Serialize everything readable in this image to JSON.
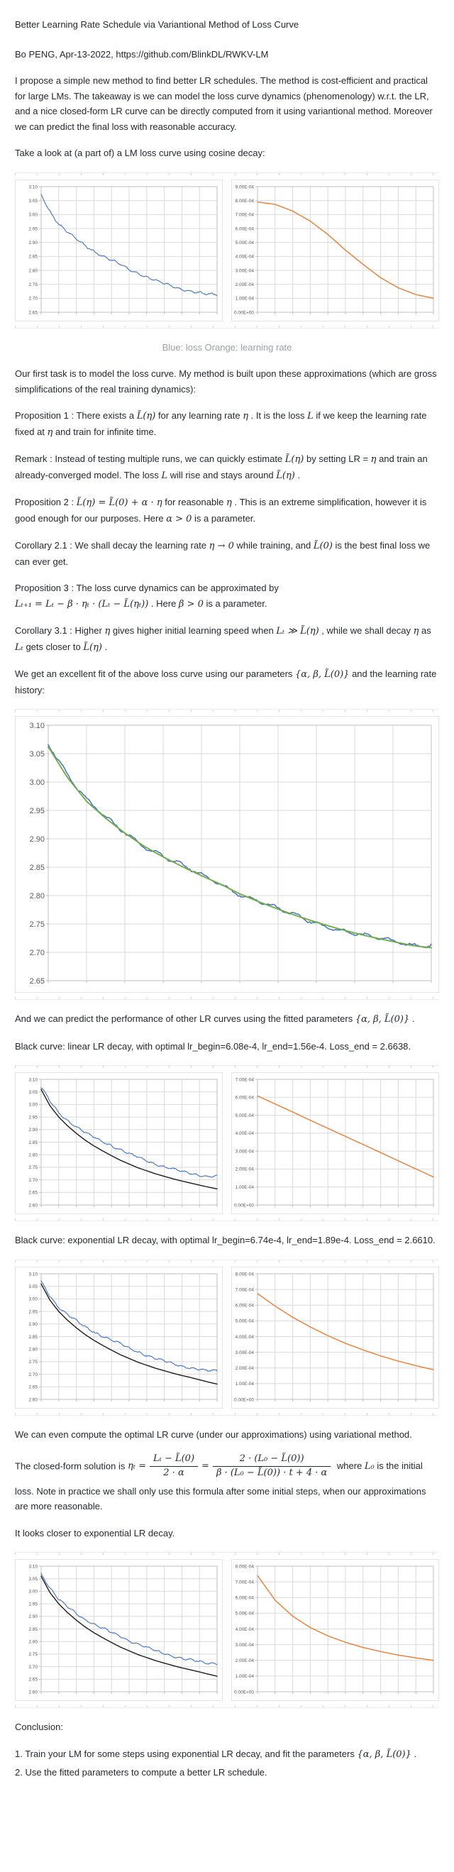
{
  "doc": {
    "title": "Better Learning Rate Schedule via Variantional Method of Loss Curve",
    "byline": "Bo PENG, Apr-13-2022, https://github.com/BlinkDL/RWKV-LM",
    "intro": [
      {
        "t": "I propose a simple new method to find better LR schedules. The method is cost-efficient and practical for large LMs. The takeaway is we can model the loss curve dynamics (phenomenology) w.r.t. the LR, and a nice closed-form LR curve can be directly computed from it using variantional method. Moreover we can predict the final loss with reasonable accuracy."
      }
    ],
    "take_a_look": [
      {
        "t": "Take a look at (a part of) a LM loss curve using cosine decay:"
      }
    ],
    "caption": "Blue: loss Orange: learning rate",
    "first_task": [
      {
        "t": "Our first task is to model the loss curve. My method is built upon these approximations (which are gross simplifications of the real training dynamics):"
      }
    ],
    "prop1": [
      {
        "t": "Proposition 1 : There exists a "
      },
      {
        "m": 1,
        "t": "L̃(η)"
      },
      {
        "t": " for any learning rate "
      },
      {
        "m": 1,
        "t": "η"
      },
      {
        "t": " . It is the loss "
      },
      {
        "m": 1,
        "t": "L"
      },
      {
        "t": " if we keep the learning rate fixed at "
      },
      {
        "m": 1,
        "t": "η"
      },
      {
        "t": " and train for infinite time."
      }
    ],
    "remark": [
      {
        "t": "Remark : Instead of testing multiple runs, we can quickly estimate "
      },
      {
        "m": 1,
        "t": "L̃(η)"
      },
      {
        "t": " by setting LR = "
      },
      {
        "m": 1,
        "t": "η"
      },
      {
        "t": " and train an already-converged model. The loss "
      },
      {
        "m": 1,
        "t": "L"
      },
      {
        "t": " will rise and stays around "
      },
      {
        "m": 1,
        "t": "L̃(η)"
      },
      {
        "t": " ."
      }
    ],
    "prop2": [
      {
        "t": "Proposition 2 : "
      },
      {
        "m": 1,
        "t": "L̃(η) = L̃(0) + α · η"
      },
      {
        "t": " for reasonable "
      },
      {
        "m": 1,
        "t": "η"
      },
      {
        "t": " . This is an extreme simplification, however it is good enough for our purposes. Here "
      },
      {
        "m": 1,
        "t": "α > 0"
      },
      {
        "t": " is a parameter."
      }
    ],
    "cor21": [
      {
        "t": "Corollary 2.1 : We shall decay the learning rate "
      },
      {
        "m": 1,
        "t": "η → 0"
      },
      {
        "t": " while training, and "
      },
      {
        "m": 1,
        "t": "L̃(0)"
      },
      {
        "t": " is the best final loss we can ever get."
      }
    ],
    "prop3_line1": [
      {
        "t": "Proposition 3 : The loss curve dynamics can be approximated by"
      }
    ],
    "prop3_line2": [
      {
        "m": 1,
        "t": "Lₜ₊₁ = Lₜ − β · ηₜ · (Lₜ − L̃(ηₜ))"
      },
      {
        "t": " . Here "
      },
      {
        "m": 1,
        "t": "β > 0"
      },
      {
        "t": " is a parameter."
      }
    ],
    "cor31": [
      {
        "t": "Corollary 3.1 : Higher "
      },
      {
        "m": 1,
        "t": "η"
      },
      {
        "t": " gives higher initial learning speed when "
      },
      {
        "m": 1,
        "t": "Lₜ ≫ L̃(η)"
      },
      {
        "t": " , while we shall decay "
      },
      {
        "m": 1,
        "t": "η"
      },
      {
        "t": " as "
      },
      {
        "m": 1,
        "t": "Lₜ"
      },
      {
        "t": " gets closer to "
      },
      {
        "m": 1,
        "t": "L̃(η)"
      },
      {
        "t": " ."
      }
    ],
    "excellent_fit": [
      {
        "t": "We get an excellent fit of the above loss curve using our parameters "
      },
      {
        "m": 1,
        "t": "{α, β, L̃(0)}"
      },
      {
        "t": " and the learning rate history:"
      }
    ],
    "predict": [
      {
        "t": "And we can predict the performance of other LR curves using the fitted parameters "
      },
      {
        "m": 1,
        "t": "{α, β, L̃(0)}"
      },
      {
        "t": " ."
      }
    ],
    "black_linear": [
      {
        "t": "Black curve: linear LR decay, with optimal lr_begin=6.08e-4, lr_end=1.56e-4. Loss_end = 2.6638."
      }
    ],
    "black_exp": [
      {
        "t": "Black curve: exponential LR decay, with optimal lr_begin=6.74e-4, lr_end=1.89e-4. Loss_end = 2.6610."
      }
    ],
    "variational": [
      {
        "t": "We can even compute the optimal LR curve (under our approximations) using variational method."
      }
    ],
    "closed_form": {
      "intro": [
        {
          "t": "The closed-form solution is "
        }
      ],
      "lhs": "ηₜ =",
      "frac1_num": "Lₜ − L̃(0)",
      "frac1_den": "2 · α",
      "equals": "=",
      "frac2_num": "2 · (L₀ − L̃(0))",
      "frac2_den": "β · (L₀ − L̃(0)) · t + 4 · α",
      "outro": [
        {
          "t": " where "
        },
        {
          "m": 1,
          "t": "L₀"
        },
        {
          "t": " is the initial"
        }
      ],
      "continuation": "loss. Note in practice we shall only use this formula after some initial steps, when our approximations are more reasonable."
    },
    "closer_exp": [
      {
        "t": "It looks closer to exponential LR decay."
      }
    ],
    "conclusion_heading": "Conclusion:",
    "conclusion_items": [
      [
        {
          "t": "1. Train your LM for some steps using exponential LR decay, and fit the parameters "
        },
        {
          "m": 1,
          "t": "{α, β, L̃(0)}"
        },
        {
          "t": " ."
        }
      ],
      [
        {
          "t": "2. Use the fitted parameters to compute a better LR schedule."
        }
      ]
    ]
  },
  "colors": {
    "text": "#24292f",
    "caption_gray": "#9aa0a6",
    "loss_blue": "#4472c4",
    "lr_orange": "#ed7d31",
    "fit_green": "#70ad47",
    "optimal_black": "#1c1c1c",
    "gridline": "#d9d9d9"
  },
  "chart_data": [
    {
      "name": "loss-curve-cosine-decay",
      "type": "line",
      "x_axis": "training steps (unlabeled)",
      "y_ticks": [
        "3.10",
        "3.05",
        "3.00",
        "2.95",
        "2.90",
        "2.85",
        "2.80",
        "2.75",
        "2.70",
        "2.65"
      ],
      "y_max": 3.1,
      "y_min": 2.65,
      "x_divisions": 10,
      "series": [
        {
          "name": "loss",
          "color": "#4472c4",
          "width": 1.1,
          "noise": 0.006,
          "seed": 3,
          "y": [
            3.07,
            3.012,
            2.967,
            2.937,
            2.912,
            2.888,
            2.869,
            2.852,
            2.836,
            2.821,
            2.803,
            2.79,
            2.776,
            2.763,
            2.752,
            2.742,
            2.733,
            2.726,
            2.719,
            2.713,
            2.714
          ]
        }
      ]
    },
    {
      "name": "learning-rate-cosine-decay",
      "type": "line",
      "x_axis": "training steps (unlabeled)",
      "y_ticks": [
        "9.00E-04",
        "8.00E-04",
        "7.00E-04",
        "6.00E-04",
        "5.00E-04",
        "4.00E-04",
        "3.00E-04",
        "2.00E-04",
        "1.00E-04",
        "0.00E+00"
      ],
      "y_max": 0.0009,
      "y_min": 0,
      "x_divisions": 10,
      "series": [
        {
          "name": "learning rate",
          "color": "#ed7d31",
          "width": 1.4,
          "noise": 0,
          "seed": 1,
          "y": [
            0.00079,
            0.000773,
            0.000725,
            0.000653,
            0.000557,
            0.000445,
            0.000343,
            0.000247,
            0.000175,
            0.000127,
            0.0001
          ]
        }
      ]
    },
    {
      "name": "loss-curve-with-fitted-model",
      "type": "line",
      "x_axis": "training steps (unlabeled)",
      "y_ticks": [
        "3.10",
        "3.05",
        "3.00",
        "2.95",
        "2.90",
        "2.85",
        "2.80",
        "2.75",
        "2.70",
        "2.65"
      ],
      "y_max": 3.1,
      "y_min": 2.65,
      "x_divisions": 10,
      "series": [
        {
          "name": "loss (actual)",
          "color": "#4472c4",
          "width": 1.5,
          "noise": 0.0055,
          "seed": 5,
          "y": [
            3.07,
            3.012,
            2.967,
            2.937,
            2.912,
            2.888,
            2.869,
            2.852,
            2.836,
            2.821,
            2.803,
            2.79,
            2.776,
            2.763,
            2.752,
            2.742,
            2.733,
            2.726,
            2.719,
            2.713,
            2.714
          ]
        },
        {
          "name": "fit",
          "color": "#70ad47",
          "width": 1.9,
          "noise": 0,
          "seed": 1,
          "y": [
            3.062,
            3.008,
            2.966,
            2.936,
            2.91,
            2.887,
            2.868,
            2.851,
            2.835,
            2.82,
            2.803,
            2.789,
            2.776,
            2.764,
            2.753,
            2.743,
            2.734,
            2.726,
            2.719,
            2.712,
            2.708
          ]
        }
      ]
    },
    {
      "name": "loss-predicted-linear-decay",
      "type": "line",
      "x_axis": "training steps (unlabeled)",
      "y_ticks": [
        "3.10",
        "3.05",
        "3.00",
        "2.95",
        "2.90",
        "2.85",
        "2.80",
        "2.75",
        "2.70",
        "2.65",
        "2.60"
      ],
      "y_max": 3.1,
      "y_min": 2.6,
      "x_divisions": 10,
      "series": [
        {
          "name": "loss (actual)",
          "color": "#4472c4",
          "width": 1.1,
          "noise": 0.006,
          "seed": 7,
          "y": [
            3.07,
            3.012,
            2.967,
            2.937,
            2.912,
            2.888,
            2.869,
            2.852,
            2.836,
            2.821,
            2.803,
            2.79,
            2.776,
            2.763,
            2.752,
            2.742,
            2.733,
            2.726,
            2.719,
            2.713,
            2.714
          ]
        },
        {
          "name": "predicted (linear LR decay)",
          "color": "#1c1c1c",
          "width": 1.4,
          "noise": 0,
          "seed": 1,
          "y": [
            3.06,
            2.995,
            2.95,
            2.915,
            2.885,
            2.858,
            2.835,
            2.815,
            2.796,
            2.778,
            2.763,
            2.748,
            2.736,
            2.724,
            2.714,
            2.704,
            2.695,
            2.687,
            2.679,
            2.671,
            2.664
          ]
        }
      ]
    },
    {
      "name": "learning-rate-linear-decay",
      "type": "line",
      "x_axis": "training steps (unlabeled)",
      "y_ticks": [
        "7.00E-04",
        "6.00E-04",
        "5.00E-04",
        "4.00E-04",
        "3.00E-04",
        "2.00E-04",
        "1.00E-04",
        "0.00E+00"
      ],
      "y_max": 0.0007,
      "y_min": 0,
      "x_divisions": 10,
      "series": [
        {
          "name": "learning rate",
          "color": "#ed7d31",
          "width": 1.4,
          "noise": 0,
          "seed": 1,
          "y": [
            0.000608,
            0.000563,
            0.000518,
            0.000472,
            0.000427,
            0.000382,
            0.000337,
            0.000292,
            0.000246,
            0.000201,
            0.000156
          ]
        }
      ]
    },
    {
      "name": "loss-predicted-exponential-decay",
      "type": "line",
      "x_axis": "training steps (unlabeled)",
      "y_ticks": [
        "3.10",
        "3.05",
        "3.00",
        "2.95",
        "2.90",
        "2.85",
        "2.80",
        "2.75",
        "2.70",
        "2.65",
        "2.60"
      ],
      "y_max": 3.1,
      "y_min": 2.6,
      "x_divisions": 10,
      "series": [
        {
          "name": "loss (actual)",
          "color": "#4472c4",
          "width": 1.1,
          "noise": 0.006,
          "seed": 9,
          "y": [
            3.07,
            3.012,
            2.967,
            2.937,
            2.912,
            2.888,
            2.869,
            2.852,
            2.836,
            2.821,
            2.803,
            2.79,
            2.776,
            2.763,
            2.752,
            2.742,
            2.733,
            2.726,
            2.719,
            2.713,
            2.714
          ]
        },
        {
          "name": "predicted (exponential LR decay)",
          "color": "#1c1c1c",
          "width": 1.4,
          "noise": 0,
          "seed": 1,
          "y": [
            3.06,
            2.995,
            2.95,
            2.915,
            2.885,
            2.858,
            2.835,
            2.815,
            2.796,
            2.778,
            2.763,
            2.748,
            2.736,
            2.724,
            2.714,
            2.704,
            2.695,
            2.687,
            2.678,
            2.669,
            2.661
          ]
        }
      ]
    },
    {
      "name": "learning-rate-exponential-decay",
      "type": "line",
      "x_axis": "training steps (unlabeled)",
      "y_ticks": [
        "8.00E-04",
        "7.00E-04",
        "6.00E-04",
        "5.00E-04",
        "4.00E-04",
        "3.00E-04",
        "2.00E-04",
        "1.00E-04",
        "0.00E+00"
      ],
      "y_max": 0.0008,
      "y_min": 0,
      "x_divisions": 10,
      "series": [
        {
          "name": "learning rate",
          "color": "#ed7d31",
          "width": 1.4,
          "noise": 0,
          "seed": 1,
          "y": [
            0.000674,
            0.000594,
            0.000523,
            0.000461,
            0.000406,
            0.000357,
            0.000315,
            0.000277,
            0.000244,
            0.000215,
            0.000189
          ]
        }
      ]
    },
    {
      "name": "loss-predicted-optimal-lr",
      "type": "line",
      "x_axis": "training steps (unlabeled)",
      "y_ticks": [
        "3.10",
        "3.05",
        "3.00",
        "2.95",
        "2.90",
        "2.85",
        "2.80",
        "2.75",
        "2.70",
        "2.65",
        "2.60"
      ],
      "y_max": 3.1,
      "y_min": 2.6,
      "x_divisions": 10,
      "series": [
        {
          "name": "loss (actual)",
          "color": "#4472c4",
          "width": 1.1,
          "noise": 0.006,
          "seed": 11,
          "y": [
            3.07,
            3.012,
            2.967,
            2.937,
            2.912,
            2.888,
            2.869,
            2.852,
            2.836,
            2.821,
            2.803,
            2.79,
            2.776,
            2.763,
            2.752,
            2.742,
            2.733,
            2.726,
            2.719,
            2.713,
            2.714
          ]
        },
        {
          "name": "predicted (optimal LR)",
          "color": "#1c1c1c",
          "width": 1.4,
          "noise": 0,
          "seed": 1,
          "y": [
            3.06,
            2.995,
            2.95,
            2.915,
            2.885,
            2.858,
            2.835,
            2.815,
            2.796,
            2.778,
            2.763,
            2.748,
            2.736,
            2.724,
            2.714,
            2.704,
            2.695,
            2.687,
            2.679,
            2.67,
            2.662
          ]
        }
      ]
    },
    {
      "name": "learning-rate-optimal-closed-form",
      "type": "line",
      "x_axis": "training steps (unlabeled)",
      "y_ticks": [
        "8.00E-04",
        "7.00E-04",
        "6.00E-04",
        "5.00E-04",
        "4.00E-04",
        "3.00E-04",
        "2.00E-04",
        "1.00E-04",
        "0.00E+00"
      ],
      "y_max": 0.0008,
      "y_min": 0,
      "x_divisions": 10,
      "series": [
        {
          "name": "learning rate",
          "color": "#ed7d31",
          "width": 1.4,
          "noise": 0,
          "seed": 1,
          "y": [
            0.00074,
            0.000583,
            0.000481,
            0.000409,
            0.000356,
            0.000315,
            0.000282,
            0.000256,
            0.000234,
            0.000216,
            0.0002
          ]
        }
      ]
    }
  ]
}
